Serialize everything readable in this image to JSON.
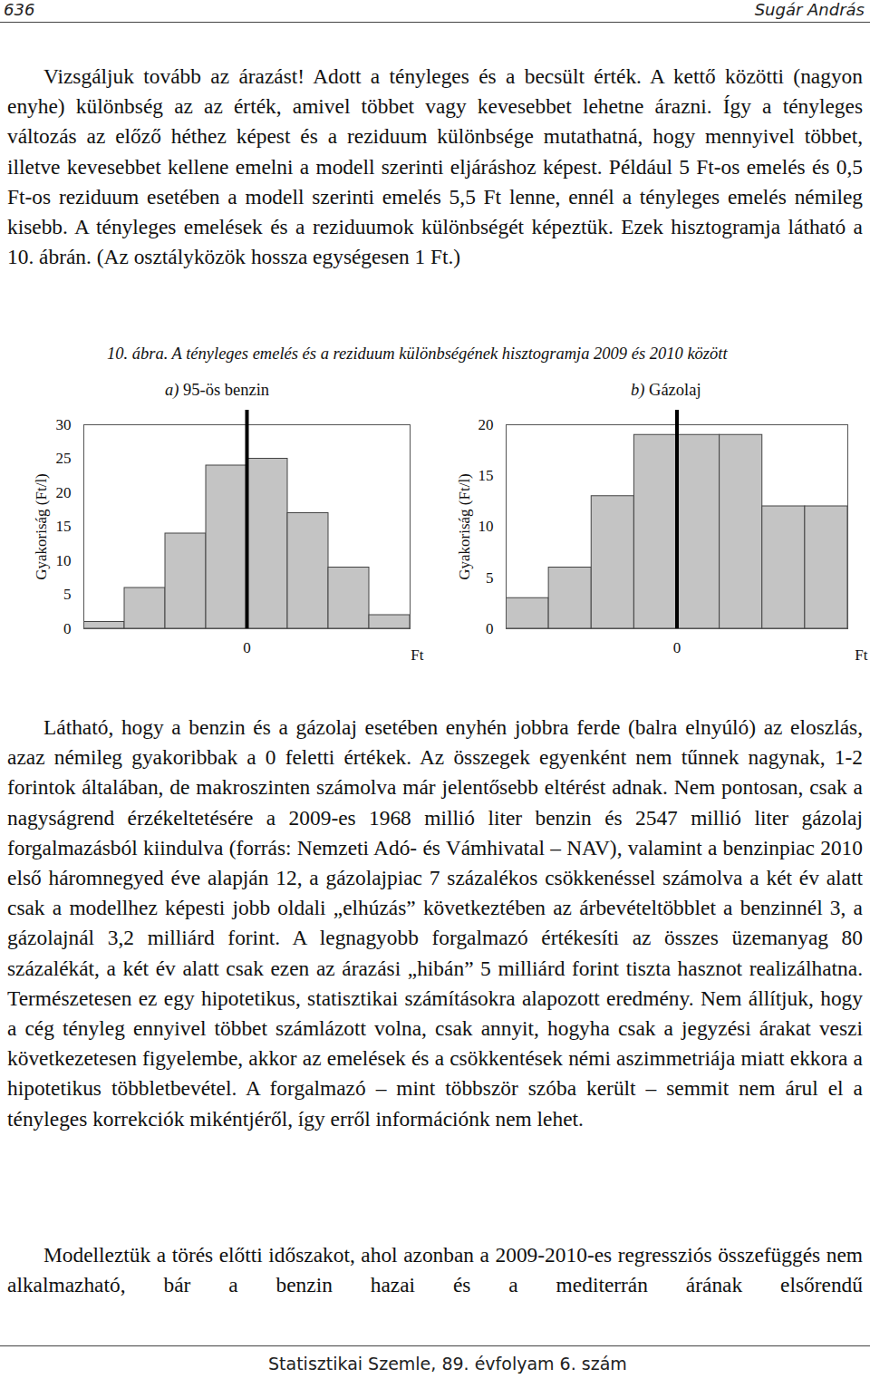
{
  "document": {
    "header": {
      "page": "636",
      "author": "Sugár András"
    },
    "paragraphs_before": [
      "Vizsgáljuk tovább az árazást! Adott a tényleges és a becsült érték. A kettő közötti (nagyon enyhe) különbség az az érték, amivel többet vagy kevesebbet lehetne árazni. Így a tényleges változás az előző héthez képest és a reziduum különbsége mutathatná, hogy mennyivel többet, illetve kevesebbet kellene emelni a modell szerinti eljáráshoz képest. Például 5 Ft-os emelés és 0,5 Ft-os reziduum esetében a modell szerinti emelés 5,5 Ft lenne, ennél a tényleges emelés némileg kisebb. A tényleges emelések és a reziduumok különbségét képeztük. Ezek hisztogramja látható a 10. ábrán. (Az osztályközök hossza egységesen 1 Ft.)"
    ],
    "figure_title": "10. ábra. A tényleges emelés és a reziduum különbségének hisztogramja 2009 és 2010 között",
    "paragraphs_after": [
      "Látható, hogy a benzin és a gázolaj esetében enyhén jobbra ferde (balra elnyúló) az eloszlás, azaz némileg gyakoribbak a 0 feletti értékek. Az összegek egyenként nem tűnnek nagynak, 1-2 forintok általában, de makroszinten számolva már jelentősebb eltérést adnak. Nem pontosan, csak a nagyságrend érzékeltetésére a 2009-es 1968 millió liter benzin és 2547 millió liter gázolaj forgalmazásból kiindulva (forrás: Nemzeti Adó- és Vámhivatal – NAV), valamint a benzinpiac 2010 első háromnegyed éve alapján 12, a gázolajpiac 7 százalékos csökkenéssel számolva a két év alatt csak a modellhez képesti jobb oldali „elhúzás” következtében az árbevételtöbblet a benzinnél 3, a gázolajnál 3,2 milliárd forint. A legnagyobb forgalmazó értékesíti az összes üzemanyag 80 százalékát, a két év alatt csak ezen az árazási „hibán” 5 milliárd forint tiszta hasznot realizálhatna. Természetesen ez egy hipotetikus, statisztikai számításokra alapozott eredmény. Nem állítjuk, hogy a cég tényleg ennyivel többet számlázott volna, csak annyit, hogyha csak a jegyzési árakat veszi következetesen figyelembe, akkor az emelések és a csökkentések némi aszimmetriája miatt ekkora a hipotetikus többletbevétel. A forgalmazó – mint többször szóba került – semmit nem árul el a tényleges korrekciók mikéntjéről, így erről információnk nem lehet.",
      "Modelleztük a törés előtti időszakot, ahol azonban a 2009-2010-es regressziós összefüggés nem alkalmazható, bár a benzin hazai és a mediterrán árának elsőrendű"
    ],
    "footer": "Statisztikai Szemle, 89. évfolyam 6. szám"
  },
  "chart_data": [
    {
      "type": "histogram",
      "title": "a) 95-ös benzin",
      "bins": [
        -4,
        -3,
        -2,
        -1,
        0,
        1,
        2,
        3,
        4
      ],
      "values": [
        1,
        6,
        14,
        24,
        25,
        17,
        9,
        2
      ],
      "color": "#c4c4c4",
      "xlabel": "Ft",
      "ylabel": "Gyakoriság (Ft/l)",
      "xlim": [
        -4,
        4
      ],
      "xticks": [
        0
      ],
      "ylim": [
        0,
        30
      ],
      "yticks": [
        0,
        5,
        10,
        15,
        20,
        25,
        30
      ],
      "vline": 0
    },
    {
      "type": "histogram",
      "title": "b) Gázolaj",
      "bins": [
        -4,
        -3,
        -2,
        -1,
        0,
        1,
        2,
        3,
        4
      ],
      "values": [
        3,
        6,
        13,
        19,
        19,
        19,
        12,
        12
      ],
      "color": "#c4c4c4",
      "xlabel": "Ft",
      "ylabel": "Gyakoriság (Ft/l)",
      "xlim": [
        -4,
        4
      ],
      "xticks": [
        0
      ],
      "ylim": [
        0,
        20
      ],
      "yticks": [
        0,
        5,
        10,
        15,
        20
      ],
      "vline": 0
    }
  ]
}
